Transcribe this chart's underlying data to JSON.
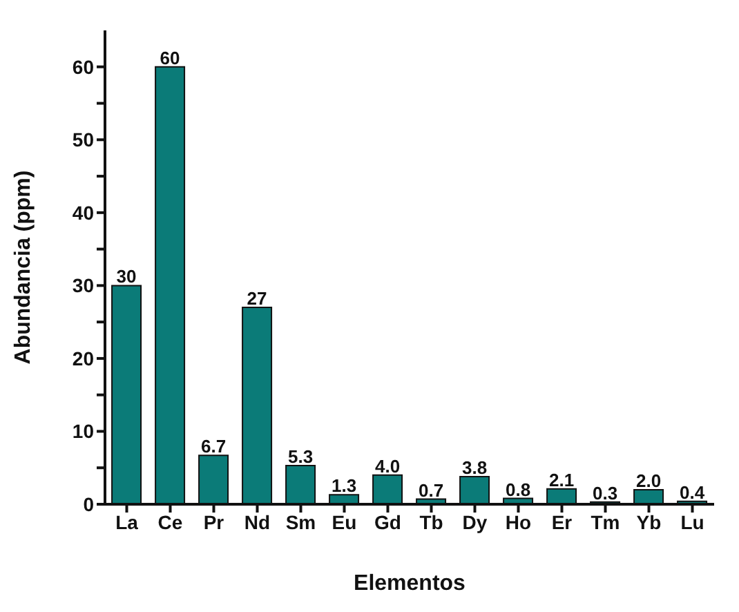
{
  "chart_data": {
    "type": "bar",
    "xlabel": "Elementos",
    "ylabel": "Abundancia (ppm)",
    "categories": [
      "La",
      "Ce",
      "Pr",
      "Nd",
      "Sm",
      "Eu",
      "Gd",
      "Tb",
      "Dy",
      "Ho",
      "Er",
      "Tm",
      "Yb",
      "Lu"
    ],
    "values": [
      30,
      60,
      6.7,
      27,
      5.3,
      1.3,
      4.0,
      0.7,
      3.8,
      0.8,
      2.1,
      0.3,
      2.0,
      0.4
    ],
    "value_labels": [
      "30",
      "60",
      "6.7",
      "27",
      "5.3",
      "1.3",
      "4.0",
      "0.7",
      "3.8",
      "0.8",
      "2.1",
      "0.3",
      "2.0",
      "0.4"
    ],
    "color": "#0b7b78",
    "ylim": [
      0,
      65
    ],
    "yticks": [
      0,
      {
        "value": 5,
        "label": null
      },
      10,
      {
        "value": 15,
        "label": null
      },
      20,
      {
        "value": 25,
        "label": null
      },
      30,
      {
        "value": 35,
        "label": null
      },
      40,
      {
        "value": 45,
        "label": null
      },
      50,
      {
        "value": 55,
        "label": null
      },
      60
    ],
    "grid": false,
    "legend": false
  }
}
